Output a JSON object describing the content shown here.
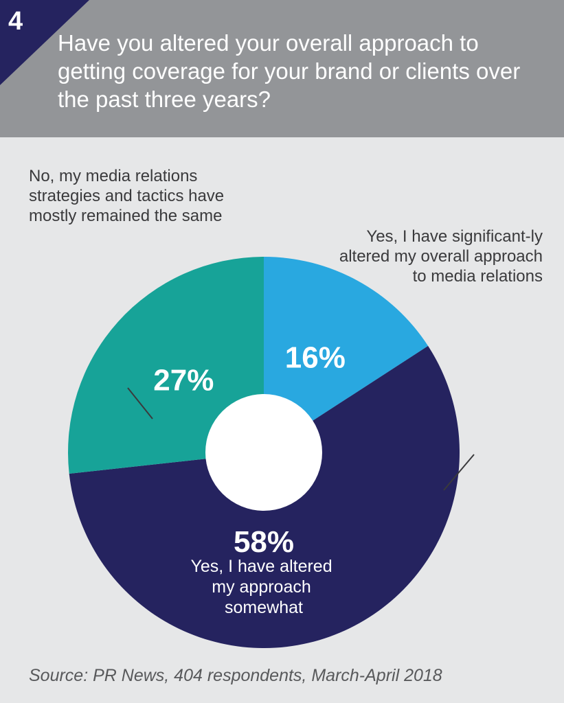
{
  "header": {
    "number": "4",
    "title": "Have you altered your overall approach to getting coverage for your brand or clients over the past three years?"
  },
  "chart_data": {
    "type": "pie",
    "title": "",
    "slices": [
      {
        "label": "Yes, I have significantly altered my overall approach to media relations",
        "value": 16,
        "display": "16%",
        "color": "#29a8e0"
      },
      {
        "label": "Yes, I have altered my approach somewhat",
        "value": 58,
        "display": "58%",
        "color": "#25235f"
      },
      {
        "label": "No, my media relations strategies and tactics have mostly remained the same",
        "value": 27,
        "display": "27%",
        "color": "#17a398"
      }
    ],
    "annotations": {
      "no": "No, my media relations strategies and tactics have mostly remained the same",
      "significant": "Yes, I have significant-ly altered my overall approach to media relations",
      "somewhat_lines": [
        "Yes, I have altered",
        "my approach",
        "somewhat"
      ]
    }
  },
  "source": "Source: PR News, 404 respondents, March-April 2018",
  "colors": {
    "header_bg": "#939598",
    "corner": "#25235f",
    "background": "#e6e7e8"
  }
}
